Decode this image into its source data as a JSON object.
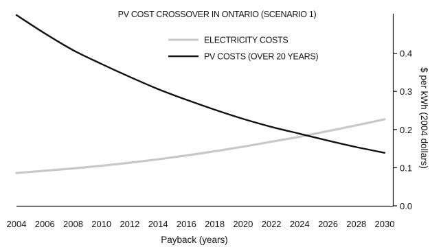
{
  "chart_data": {
    "type": "line",
    "title": "PV COST CROSSOVER IN ONTARIO (SCENARIO 1)",
    "xlabel": "Payback (years)",
    "ylabel": "$ per kWh (2004 dollars)",
    "xlim": [
      2004,
      2030
    ],
    "ylim": [
      0,
      0.5
    ],
    "grid": false,
    "legend_position": "top-center",
    "x_ticks": [
      "2004",
      "2006",
      "2008",
      "2010",
      "2012",
      "2014",
      "2016",
      "2018",
      "2020",
      "2022",
      "2024",
      "2026",
      "2028",
      "2030"
    ],
    "y_ticks": [
      "0.0",
      "0.1",
      "0.2",
      "0.3",
      "0.4"
    ],
    "x": [
      2004,
      2006,
      2008,
      2010,
      2012,
      2014,
      2016,
      2018,
      2020,
      2022,
      2024,
      2026,
      2028,
      2030
    ],
    "series": [
      {
        "name": "ELECTRICITY COSTS",
        "color": "#c8c8c8",
        "values": [
          0.086,
          0.092,
          0.098,
          0.105,
          0.113,
          0.122,
          0.132,
          0.143,
          0.155,
          0.168,
          0.181,
          0.196,
          0.211,
          0.227
        ]
      },
      {
        "name": "PV COSTS  (OVER 20 YEARS)",
        "color": "#111111",
        "values": [
          0.5,
          0.452,
          0.408,
          0.372,
          0.338,
          0.306,
          0.278,
          0.252,
          0.228,
          0.207,
          0.189,
          0.171,
          0.154,
          0.139
        ]
      }
    ]
  }
}
